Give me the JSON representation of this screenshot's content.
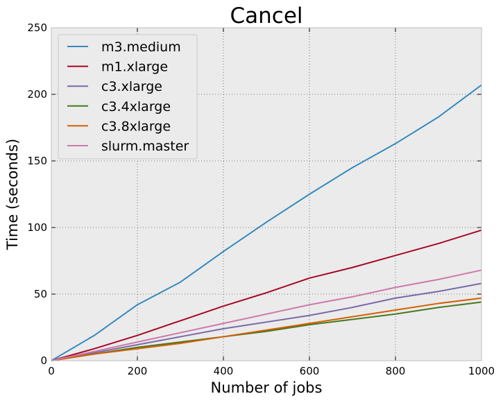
{
  "chart_data": {
    "type": "line",
    "title": "Cancel",
    "xlabel": "Number of jobs",
    "ylabel": "Time (seconds)",
    "xlim": [
      0,
      1000
    ],
    "ylim": [
      0,
      250
    ],
    "xticks": [
      "0",
      "200",
      "400",
      "600",
      "800",
      "1000"
    ],
    "yticks": [
      "0",
      "50",
      "100",
      "150",
      "200",
      "250"
    ],
    "grid": true,
    "legend_position": "top-left",
    "x": [
      0,
      100,
      200,
      300,
      400,
      500,
      600,
      700,
      800,
      900,
      1000
    ],
    "series": [
      {
        "name": "m3.medium",
        "color": "#348abd",
        "values": [
          0,
          19,
          42,
          59,
          82,
          104,
          125,
          145,
          163,
          183,
          207
        ]
      },
      {
        "name": "m1.xlarge",
        "color": "#a60628",
        "values": [
          0,
          9,
          19,
          30,
          41,
          51,
          62,
          70,
          79,
          88,
          98
        ]
      },
      {
        "name": "c3.xlarge",
        "color": "#7a68a6",
        "values": [
          0,
          6,
          12,
          18,
          24,
          29,
          34,
          40,
          47,
          52,
          58
        ]
      },
      {
        "name": "c3.4xlarge",
        "color": "#467821",
        "values": [
          0,
          5,
          10,
          14,
          18,
          22,
          27,
          31,
          35,
          40,
          44
        ]
      },
      {
        "name": "c3.8xlarge",
        "color": "#d55e00",
        "values": [
          0,
          5,
          9,
          13,
          18,
          23,
          28,
          33,
          38,
          43,
          47
        ]
      },
      {
        "name": "slurm.master",
        "color": "#cc79a7",
        "values": [
          0,
          7,
          14,
          21,
          28,
          35,
          42,
          48,
          55,
          61,
          68
        ]
      }
    ]
  }
}
